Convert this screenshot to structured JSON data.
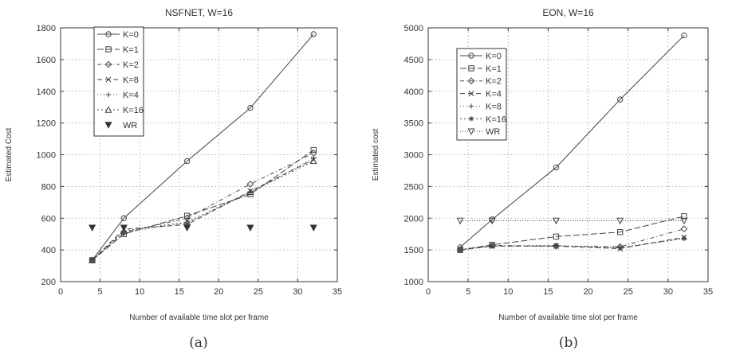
{
  "chart_data": [
    {
      "type": "line",
      "title": "NSFNET, W=16",
      "xlabel": "Number of available time slot per frame",
      "ylabel": "Estimated Cost",
      "caption": "(a)",
      "xlim": [
        0,
        35
      ],
      "ylim": [
        200,
        1800
      ],
      "xticks": [
        0,
        5,
        10,
        15,
        20,
        25,
        30,
        35
      ],
      "yticks": [
        200,
        400,
        600,
        800,
        1000,
        1200,
        1400,
        1600,
        1800
      ],
      "grid": true,
      "legend_position": "top-left",
      "x": [
        4,
        8,
        16,
        24,
        32
      ],
      "series": [
        {
          "name": "K=0",
          "marker": "circle",
          "dash": "",
          "values": [
            335,
            600,
            960,
            1295,
            1760
          ]
        },
        {
          "name": "K=1",
          "marker": "square",
          "dash": "8 3",
          "values": [
            335,
            500,
            615,
            750,
            1030
          ]
        },
        {
          "name": "K=2",
          "marker": "diamond",
          "dash": "5 3 1 3",
          "values": [
            335,
            510,
            600,
            815,
            1010
          ]
        },
        {
          "name": "K=8",
          "marker": "x",
          "dash": "6 4",
          "values": [
            335,
            530,
            560,
            770,
            970
          ]
        },
        {
          "name": "K=4",
          "marker": "plus",
          "dash": "1 3",
          "values": [
            335,
            510,
            570,
            760,
            980
          ]
        },
        {
          "name": "K=16",
          "marker": "triangle",
          "dash": "2 3",
          "values": [
            335,
            520,
            575,
            765,
            960
          ]
        },
        {
          "name": "WR",
          "marker": "triangle-down-filled",
          "dash": "none",
          "values": [
            540,
            540,
            540,
            540,
            540
          ]
        }
      ]
    },
    {
      "type": "line",
      "title": "EON, W=16",
      "xlabel": "Number of available time slot per frame",
      "ylabel": "Estimated cost",
      "caption": "(b)",
      "xlim": [
        0,
        35
      ],
      "ylim": [
        1000,
        5000
      ],
      "xticks": [
        0,
        5,
        10,
        15,
        20,
        25,
        30,
        35
      ],
      "yticks": [
        1000,
        1500,
        2000,
        2500,
        3000,
        3500,
        4000,
        4500,
        5000
      ],
      "grid": true,
      "legend_position": "top-left",
      "x": [
        4,
        8,
        16,
        24,
        32
      ],
      "series": [
        {
          "name": "K=0",
          "marker": "circle",
          "dash": "",
          "values": [
            1540,
            1980,
            2800,
            3870,
            4880
          ]
        },
        {
          "name": "K=1",
          "marker": "square",
          "dash": "8 3",
          "values": [
            1500,
            1580,
            1710,
            1780,
            2030
          ]
        },
        {
          "name": "K=2",
          "marker": "diamond",
          "dash": "5 3 1 3",
          "values": [
            1500,
            1570,
            1560,
            1550,
            1830
          ]
        },
        {
          "name": "K=4",
          "marker": "x",
          "dash": "6 4",
          "values": [
            1500,
            1560,
            1560,
            1520,
            1700
          ]
        },
        {
          "name": "K=8",
          "marker": "plus",
          "dash": "1 3",
          "values": [
            1500,
            1560,
            1560,
            1540,
            1680
          ]
        },
        {
          "name": "K=16",
          "marker": "star",
          "dash": "2 3",
          "values": [
            1500,
            1560,
            1570,
            1530,
            1680
          ]
        },
        {
          "name": "WR",
          "marker": "triangle-down",
          "dash": "1 2",
          "values": [
            1960,
            1960,
            1960,
            1960,
            1960
          ]
        }
      ]
    }
  ]
}
